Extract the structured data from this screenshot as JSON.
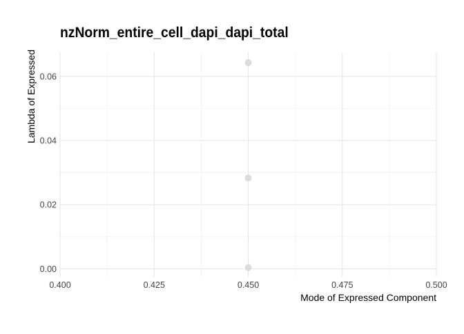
{
  "chart_data": {
    "type": "scatter",
    "title": "nzNorm_entire_cell_dapi_dapi_total",
    "xlabel": "Mode of Expressed Component",
    "ylabel": "Lambda of Expressed",
    "xlim": [
      0.4,
      0.5
    ],
    "ylim": [
      -0.0025,
      0.0675
    ],
    "x_ticks": [
      0.4,
      0.425,
      0.45,
      0.475,
      0.5
    ],
    "x_tick_labels": [
      "0.400",
      "0.425",
      "0.450",
      "0.475",
      "0.500"
    ],
    "y_ticks": [
      0.0,
      0.02,
      0.04,
      0.06
    ],
    "y_tick_labels": [
      "0.00",
      "0.02",
      "0.04",
      "0.06"
    ],
    "grid": true,
    "legend": "none",
    "point_color": "#d9d9d9",
    "grid_color": "#e3e3e3",
    "points": [
      {
        "x": 0.45,
        "y": 0.0643
      },
      {
        "x": 0.45,
        "y": 0.0283
      },
      {
        "x": 0.45,
        "y": 0.0004
      }
    ]
  }
}
